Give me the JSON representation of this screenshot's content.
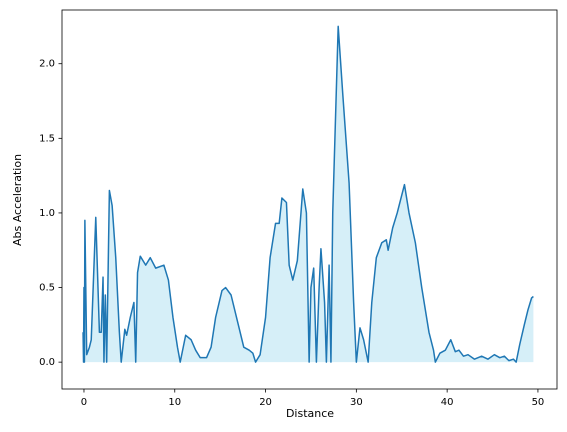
{
  "chart_data": {
    "type": "area",
    "xlabel": "Distance",
    "ylabel": "Abs Acceleration",
    "color": "#1f77b4",
    "fill_color": "#d6eff8",
    "xlim": [
      -2.42,
      52.1
    ],
    "ylim": [
      -0.18,
      2.36
    ],
    "xticks": [
      0,
      10,
      20,
      30,
      40,
      50
    ],
    "yticks": [
      {
        "value": 0,
        "label": "0.0"
      },
      0.5,
      {
        "value": 1,
        "label": "1.0"
      },
      1.5,
      {
        "value": 2,
        "label": "2.0"
      }
    ],
    "grid": false,
    "x": [
      -0.1,
      -0.05,
      0.0,
      0.05,
      0.1,
      0.3,
      0.6,
      0.8,
      1.3,
      1.7,
      1.9,
      2.1,
      2.2,
      2.35,
      2.5,
      2.8,
      3.1,
      3.5,
      3.9,
      4.1,
      4.5,
      4.7,
      5.1,
      5.5,
      5.7,
      5.9,
      6.2,
      6.8,
      7.3,
      7.9,
      8.8,
      9.3,
      9.8,
      10.3,
      10.6,
      11.2,
      11.8,
      12.3,
      12.8,
      13.5,
      14.0,
      14.5,
      15.2,
      15.6,
      16.2,
      17.0,
      17.6,
      18.2,
      18.6,
      18.9,
      19.4,
      20.0,
      20.5,
      21.1,
      21.5,
      21.8,
      22.3,
      22.6,
      23.0,
      23.5,
      24.1,
      24.5,
      24.8,
      25.0,
      25.3,
      25.6,
      25.9,
      26.1,
      26.5,
      26.7,
      27.0,
      27.2,
      27.4,
      28.0,
      28.5,
      29.2,
      29.7,
      30.0,
      30.4,
      30.8,
      31.3,
      31.7,
      32.2,
      32.8,
      33.3,
      33.5,
      34.0,
      34.5,
      35.3,
      35.8,
      36.5,
      37.2,
      38.0,
      38.5,
      38.7,
      39.2,
      39.8,
      40.4,
      40.9,
      41.3,
      41.8,
      42.3,
      43.0,
      43.8,
      44.5,
      45.2,
      45.8,
      46.3,
      46.8,
      47.3,
      47.6,
      48.0,
      48.5,
      48.9,
      49.3,
      49.5
    ],
    "values": [
      0.2,
      0.0,
      0.5,
      0.0,
      0.95,
      0.05,
      0.1,
      0.15,
      0.97,
      0.2,
      0.2,
      0.57,
      0.0,
      0.45,
      0.0,
      1.15,
      1.05,
      0.7,
      0.2,
      0.0,
      0.22,
      0.18,
      0.3,
      0.4,
      0.0,
      0.6,
      0.71,
      0.65,
      0.7,
      0.63,
      0.65,
      0.55,
      0.3,
      0.1,
      0.0,
      0.18,
      0.15,
      0.08,
      0.03,
      0.03,
      0.1,
      0.3,
      0.48,
      0.5,
      0.45,
      0.25,
      0.1,
      0.08,
      0.06,
      0.0,
      0.05,
      0.3,
      0.7,
      0.93,
      0.93,
      1.1,
      1.07,
      0.65,
      0.55,
      0.68,
      1.16,
      1.0,
      0.0,
      0.5,
      0.63,
      0.0,
      0.5,
      0.76,
      0.4,
      0.0,
      0.65,
      0.0,
      1.0,
      2.25,
      1.8,
      1.2,
      0.4,
      0.0,
      0.23,
      0.15,
      0.0,
      0.4,
      0.7,
      0.8,
      0.82,
      0.75,
      0.9,
      1.0,
      1.19,
      1.0,
      0.8,
      0.5,
      0.2,
      0.08,
      0.0,
      0.06,
      0.08,
      0.15,
      0.07,
      0.08,
      0.04,
      0.05,
      0.02,
      0.04,
      0.02,
      0.05,
      0.03,
      0.04,
      0.01,
      0.02,
      0.0,
      0.12,
      0.25,
      0.35,
      0.43,
      0.44
    ]
  }
}
